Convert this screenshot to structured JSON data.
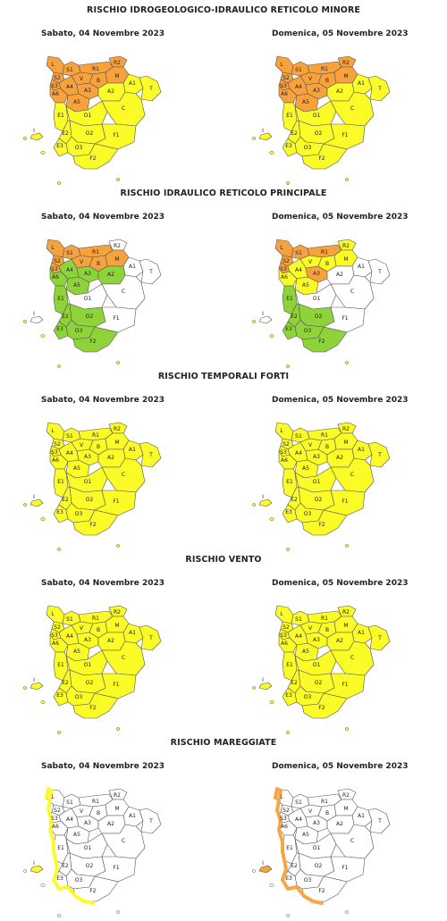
{
  "colors": {
    "orange": "#f7a23d",
    "yellow": "#fbfb27",
    "green": "#8fd33a",
    "white": "#ffffff",
    "border": "#555555"
  },
  "zone_labels": [
    "L",
    "S1",
    "S2",
    "S3",
    "R2",
    "R1",
    "V",
    "B",
    "M",
    "A4",
    "A3",
    "A1",
    "A6",
    "A5",
    "A2",
    "T",
    "E1",
    "O1",
    "C",
    "E2",
    "E3",
    "O2",
    "O3",
    "F1",
    "F2",
    "I"
  ],
  "sections": [
    {
      "title": "RISCHIO IDROGEOLOGICO-IDRAULICO RETICOLO MINORE",
      "days": [
        {
          "label": "Sabato, 04 Novembre 2023",
          "zones": {
            "L": "orange",
            "S1": "orange",
            "S2": "orange",
            "S3": "orange",
            "R2": "orange",
            "R1": "orange",
            "V": "orange",
            "B": "orange",
            "M": "orange",
            "A4": "orange",
            "A3": "orange",
            "A1": "yellow",
            "A6": "orange",
            "A5": "orange",
            "A2": "yellow",
            "T": "yellow",
            "E1": "yellow",
            "O1": "yellow",
            "C": "yellow",
            "E2": "yellow",
            "E3": "yellow",
            "O2": "yellow",
            "O3": "yellow",
            "F1": "yellow",
            "F2": "yellow",
            "I": "yellow"
          }
        },
        {
          "label": "Domenica, 05 Novembre 2023",
          "zones": {
            "L": "orange",
            "S1": "orange",
            "S2": "orange",
            "S3": "orange",
            "R2": "orange",
            "R1": "orange",
            "V": "orange",
            "B": "orange",
            "M": "orange",
            "A4": "orange",
            "A3": "orange",
            "A1": "yellow",
            "A6": "orange",
            "A5": "orange",
            "A2": "yellow",
            "T": "yellow",
            "E1": "yellow",
            "O1": "yellow",
            "C": "yellow",
            "E2": "yellow",
            "E3": "yellow",
            "O2": "yellow",
            "O3": "yellow",
            "F1": "yellow",
            "F2": "yellow",
            "I": "yellow"
          }
        }
      ]
    },
    {
      "title": "RISCHIO IDRAULICO RETICOLO PRINCIPALE",
      "days": [
        {
          "label": "Sabato, 04 Novembre 2023",
          "zones": {
            "L": "orange",
            "S1": "orange",
            "S2": "orange",
            "S3": "orange",
            "R2": "white",
            "R1": "orange",
            "V": "orange",
            "B": "orange",
            "M": "orange",
            "A4": "green",
            "A3": "green",
            "A1": "white",
            "A6": "green",
            "A5": "green",
            "A2": "green",
            "T": "white",
            "E1": "green",
            "O1": "white",
            "C": "white",
            "E2": "green",
            "E3": "green",
            "O2": "green",
            "O3": "green",
            "F1": "white",
            "F2": "green",
            "I": "white"
          }
        },
        {
          "label": "Domenica, 05 Novembre 2023",
          "zones": {
            "L": "orange",
            "S1": "orange",
            "S2": "orange",
            "S3": "orange",
            "R2": "yellow",
            "R1": "orange",
            "V": "yellow",
            "B": "yellow",
            "M": "yellow",
            "A4": "yellow",
            "A3": "orange",
            "A1": "white",
            "A6": "yellow",
            "A5": "yellow",
            "A2": "white",
            "T": "white",
            "E1": "green",
            "O1": "white",
            "C": "white",
            "E2": "green",
            "E3": "green",
            "O2": "green",
            "O3": "green",
            "F1": "white",
            "F2": "green",
            "I": "white"
          }
        }
      ]
    },
    {
      "title": "RISCHIO TEMPORALI FORTI",
      "days": [
        {
          "label": "Sabato, 04 Novembre 2023",
          "zones": {
            "L": "yellow",
            "S1": "yellow",
            "S2": "yellow",
            "S3": "yellow",
            "R2": "yellow",
            "R1": "yellow",
            "V": "yellow",
            "B": "yellow",
            "M": "yellow",
            "A4": "yellow",
            "A3": "yellow",
            "A1": "yellow",
            "A6": "yellow",
            "A5": "yellow",
            "A2": "yellow",
            "T": "yellow",
            "E1": "yellow",
            "O1": "yellow",
            "C": "yellow",
            "E2": "yellow",
            "E3": "yellow",
            "O2": "yellow",
            "O3": "yellow",
            "F1": "yellow",
            "F2": "yellow",
            "I": "yellow"
          }
        },
        {
          "label": "Domenica, 05 Novembre 2023",
          "zones": {
            "L": "yellow",
            "S1": "yellow",
            "S2": "yellow",
            "S3": "yellow",
            "R2": "yellow",
            "R1": "yellow",
            "V": "yellow",
            "B": "yellow",
            "M": "yellow",
            "A4": "yellow",
            "A3": "yellow",
            "A1": "yellow",
            "A6": "yellow",
            "A5": "yellow",
            "A2": "yellow",
            "T": "yellow",
            "E1": "yellow",
            "O1": "yellow",
            "C": "yellow",
            "E2": "yellow",
            "E3": "yellow",
            "O2": "yellow",
            "O3": "yellow",
            "F1": "yellow",
            "F2": "yellow",
            "I": "yellow"
          }
        }
      ]
    },
    {
      "title": "RISCHIO VENTO",
      "days": [
        {
          "label": "Sabato, 04 Novembre 2023",
          "zones": {
            "L": "yellow",
            "S1": "yellow",
            "S2": "yellow",
            "S3": "yellow",
            "R2": "yellow",
            "R1": "yellow",
            "V": "yellow",
            "B": "yellow",
            "M": "yellow",
            "A4": "yellow",
            "A3": "yellow",
            "A1": "yellow",
            "A6": "yellow",
            "A5": "yellow",
            "A2": "yellow",
            "T": "yellow",
            "E1": "yellow",
            "O1": "yellow",
            "C": "yellow",
            "E2": "yellow",
            "E3": "yellow",
            "O2": "yellow",
            "O3": "yellow",
            "F1": "yellow",
            "F2": "yellow",
            "I": "yellow"
          }
        },
        {
          "label": "Domenica, 05 Novembre 2023",
          "zones": {
            "L": "yellow",
            "S1": "yellow",
            "S2": "yellow",
            "S3": "yellow",
            "R2": "yellow",
            "R1": "yellow",
            "V": "yellow",
            "B": "yellow",
            "M": "yellow",
            "A4": "yellow",
            "A3": "yellow",
            "A1": "yellow",
            "A6": "yellow",
            "A5": "yellow",
            "A2": "yellow",
            "T": "yellow",
            "E1": "yellow",
            "O1": "yellow",
            "C": "yellow",
            "E2": "yellow",
            "E3": "yellow",
            "O2": "yellow",
            "O3": "yellow",
            "F1": "yellow",
            "F2": "yellow",
            "I": "yellow"
          }
        }
      ]
    },
    {
      "title": "RISCHIO MAREGGIATE",
      "days": [
        {
          "label": "Sabato, 04 Novembre 2023",
          "zones": {
            "L": "white",
            "S1": "white",
            "S2": "white",
            "S3": "white",
            "R2": "white",
            "R1": "white",
            "V": "white",
            "B": "white",
            "M": "white",
            "A4": "white",
            "A3": "white",
            "A1": "white",
            "A6": "white",
            "A5": "white",
            "A2": "white",
            "T": "white",
            "E1": "white",
            "O1": "white",
            "C": "white",
            "E2": "white",
            "E3": "white",
            "O2": "white",
            "O3": "white",
            "F1": "white",
            "F2": "white",
            "I": "yellow"
          },
          "coast": [
            "yellow",
            "yellow",
            "yellow"
          ]
        },
        {
          "label": "Domenica, 05 Novembre 2023",
          "zones": {
            "L": "white",
            "S1": "white",
            "S2": "white",
            "S3": "white",
            "R2": "white",
            "R1": "white",
            "V": "white",
            "B": "white",
            "M": "white",
            "A4": "white",
            "A3": "white",
            "A1": "white",
            "A6": "white",
            "A5": "white",
            "A2": "white",
            "T": "white",
            "E1": "white",
            "O1": "white",
            "C": "white",
            "E2": "white",
            "E3": "white",
            "O2": "white",
            "O3": "white",
            "F1": "white",
            "F2": "white",
            "I": "orange"
          },
          "coast": [
            "orange",
            "orange",
            "orange"
          ]
        }
      ]
    }
  ]
}
